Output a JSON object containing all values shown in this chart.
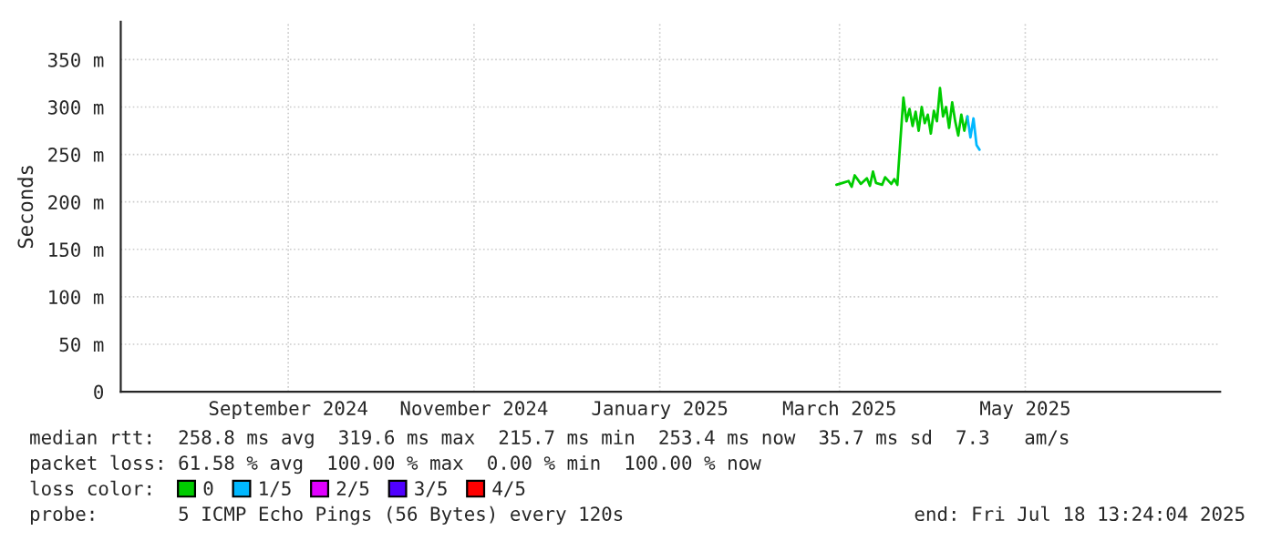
{
  "chart_data": {
    "type": "line",
    "ylabel": "Seconds",
    "legend_title": "loss color:",
    "legend": "bottom",
    "grid": true,
    "marker": "none",
    "line_style": "solid",
    "xlim": [
      "2024-07-22",
      "2025-07-18"
    ],
    "ylim": [
      0,
      390
    ],
    "yticks": [
      {
        "value": 0,
        "label": "0"
      },
      {
        "value": 50,
        "label": "50 m"
      },
      {
        "value": 100,
        "label": "100 m"
      },
      {
        "value": 150,
        "label": "150 m"
      },
      {
        "value": 200,
        "label": "200 m"
      },
      {
        "value": 250,
        "label": "250 m"
      },
      {
        "value": 300,
        "label": "300 m"
      },
      {
        "value": 350,
        "label": "350 m"
      }
    ],
    "xticks": [
      {
        "value": "2024-09-15",
        "label": "September 2024"
      },
      {
        "value": "2024-11-15",
        "label": "November 2024"
      },
      {
        "value": "2025-01-15",
        "label": "January 2025"
      },
      {
        "value": "2025-03-15",
        "label": "March 2025"
      },
      {
        "value": "2025-05-15",
        "label": "May 2025"
      }
    ],
    "x": [
      "2025-03-14",
      "2025-03-16",
      "2025-03-18",
      "2025-03-19",
      "2025-03-20",
      "2025-03-22",
      "2025-03-24",
      "2025-03-25",
      "2025-03-26",
      "2025-03-27",
      "2025-03-29",
      "2025-03-30",
      "2025-04-01",
      "2025-04-02",
      "2025-04-03",
      "2025-04-04",
      "2025-04-05",
      "2025-04-06",
      "2025-04-07",
      "2025-04-08",
      "2025-04-09",
      "2025-04-10",
      "2025-04-11",
      "2025-04-12",
      "2025-04-13",
      "2025-04-14",
      "2025-04-15",
      "2025-04-16",
      "2025-04-17",
      "2025-04-18",
      "2025-04-19",
      "2025-04-20",
      "2025-04-21",
      "2025-04-22",
      "2025-04-23",
      "2025-04-24",
      "2025-04-25",
      "2025-04-26",
      "2025-04-27",
      "2025-04-28",
      "2025-04-29",
      "2025-04-30"
    ],
    "series": [
      {
        "name": "0",
        "color": "#00cc00",
        "values": [
          218,
          220,
          222,
          216,
          228,
          219,
          225,
          217,
          232,
          220,
          218,
          226,
          219,
          224,
          218,
          265,
          310,
          285,
          298,
          280,
          295,
          275,
          300,
          283,
          292,
          272,
          296,
          285,
          320,
          290,
          300,
          278,
          305,
          285,
          270,
          292,
          275,
          290,
          null,
          null,
          null,
          null
        ]
      },
      {
        "name": "1/5",
        "color": "#00b8ff",
        "values": [
          null,
          null,
          null,
          null,
          null,
          null,
          null,
          null,
          null,
          null,
          null,
          null,
          null,
          null,
          null,
          null,
          null,
          null,
          null,
          null,
          null,
          null,
          null,
          null,
          null,
          null,
          null,
          null,
          null,
          null,
          null,
          null,
          null,
          null,
          null,
          null,
          null,
          290,
          268,
          288,
          260,
          255
        ]
      },
      {
        "name": "2/5",
        "color": "#e000ff",
        "values": [
          null,
          null,
          null,
          null,
          null,
          null,
          null,
          null,
          null,
          null,
          null,
          null,
          null,
          null,
          null,
          null,
          null,
          null,
          null,
          null,
          null,
          null,
          null,
          null,
          null,
          null,
          null,
          null,
          null,
          null,
          null,
          null,
          null,
          null,
          null,
          null,
          null,
          null,
          null,
          null,
          null,
          null
        ]
      },
      {
        "name": "3/5",
        "color": "#5000ff",
        "values": [
          null,
          null,
          null,
          null,
          null,
          null,
          null,
          null,
          null,
          null,
          null,
          null,
          null,
          null,
          null,
          null,
          null,
          null,
          null,
          null,
          null,
          null,
          null,
          null,
          null,
          null,
          null,
          null,
          null,
          null,
          null,
          null,
          null,
          null,
          null,
          null,
          null,
          null,
          null,
          null,
          null,
          null
        ]
      },
      {
        "name": "4/5",
        "color": "#ff0000",
        "values": [
          null,
          null,
          null,
          null,
          null,
          null,
          null,
          null,
          null,
          null,
          null,
          null,
          null,
          null,
          null,
          null,
          null,
          null,
          null,
          null,
          null,
          null,
          null,
          null,
          null,
          null,
          null,
          null,
          null,
          null,
          null,
          null,
          null,
          null,
          null,
          null,
          null,
          null,
          null,
          null,
          null,
          null
        ]
      }
    ],
    "annotations": [
      "median rtt:  258.8 ms avg  319.6 ms max  215.7 ms min  253.4 ms now  35.7 ms sd  7.3   am/s",
      "packet loss: 61.58 % avg  100.00 % max  0.00 % min  100.00 % now",
      "probe:       5 ICMP Echo Pings (56 Bytes) every 120s",
      "end: Fri Jul 18 13:24:04 2025"
    ]
  }
}
